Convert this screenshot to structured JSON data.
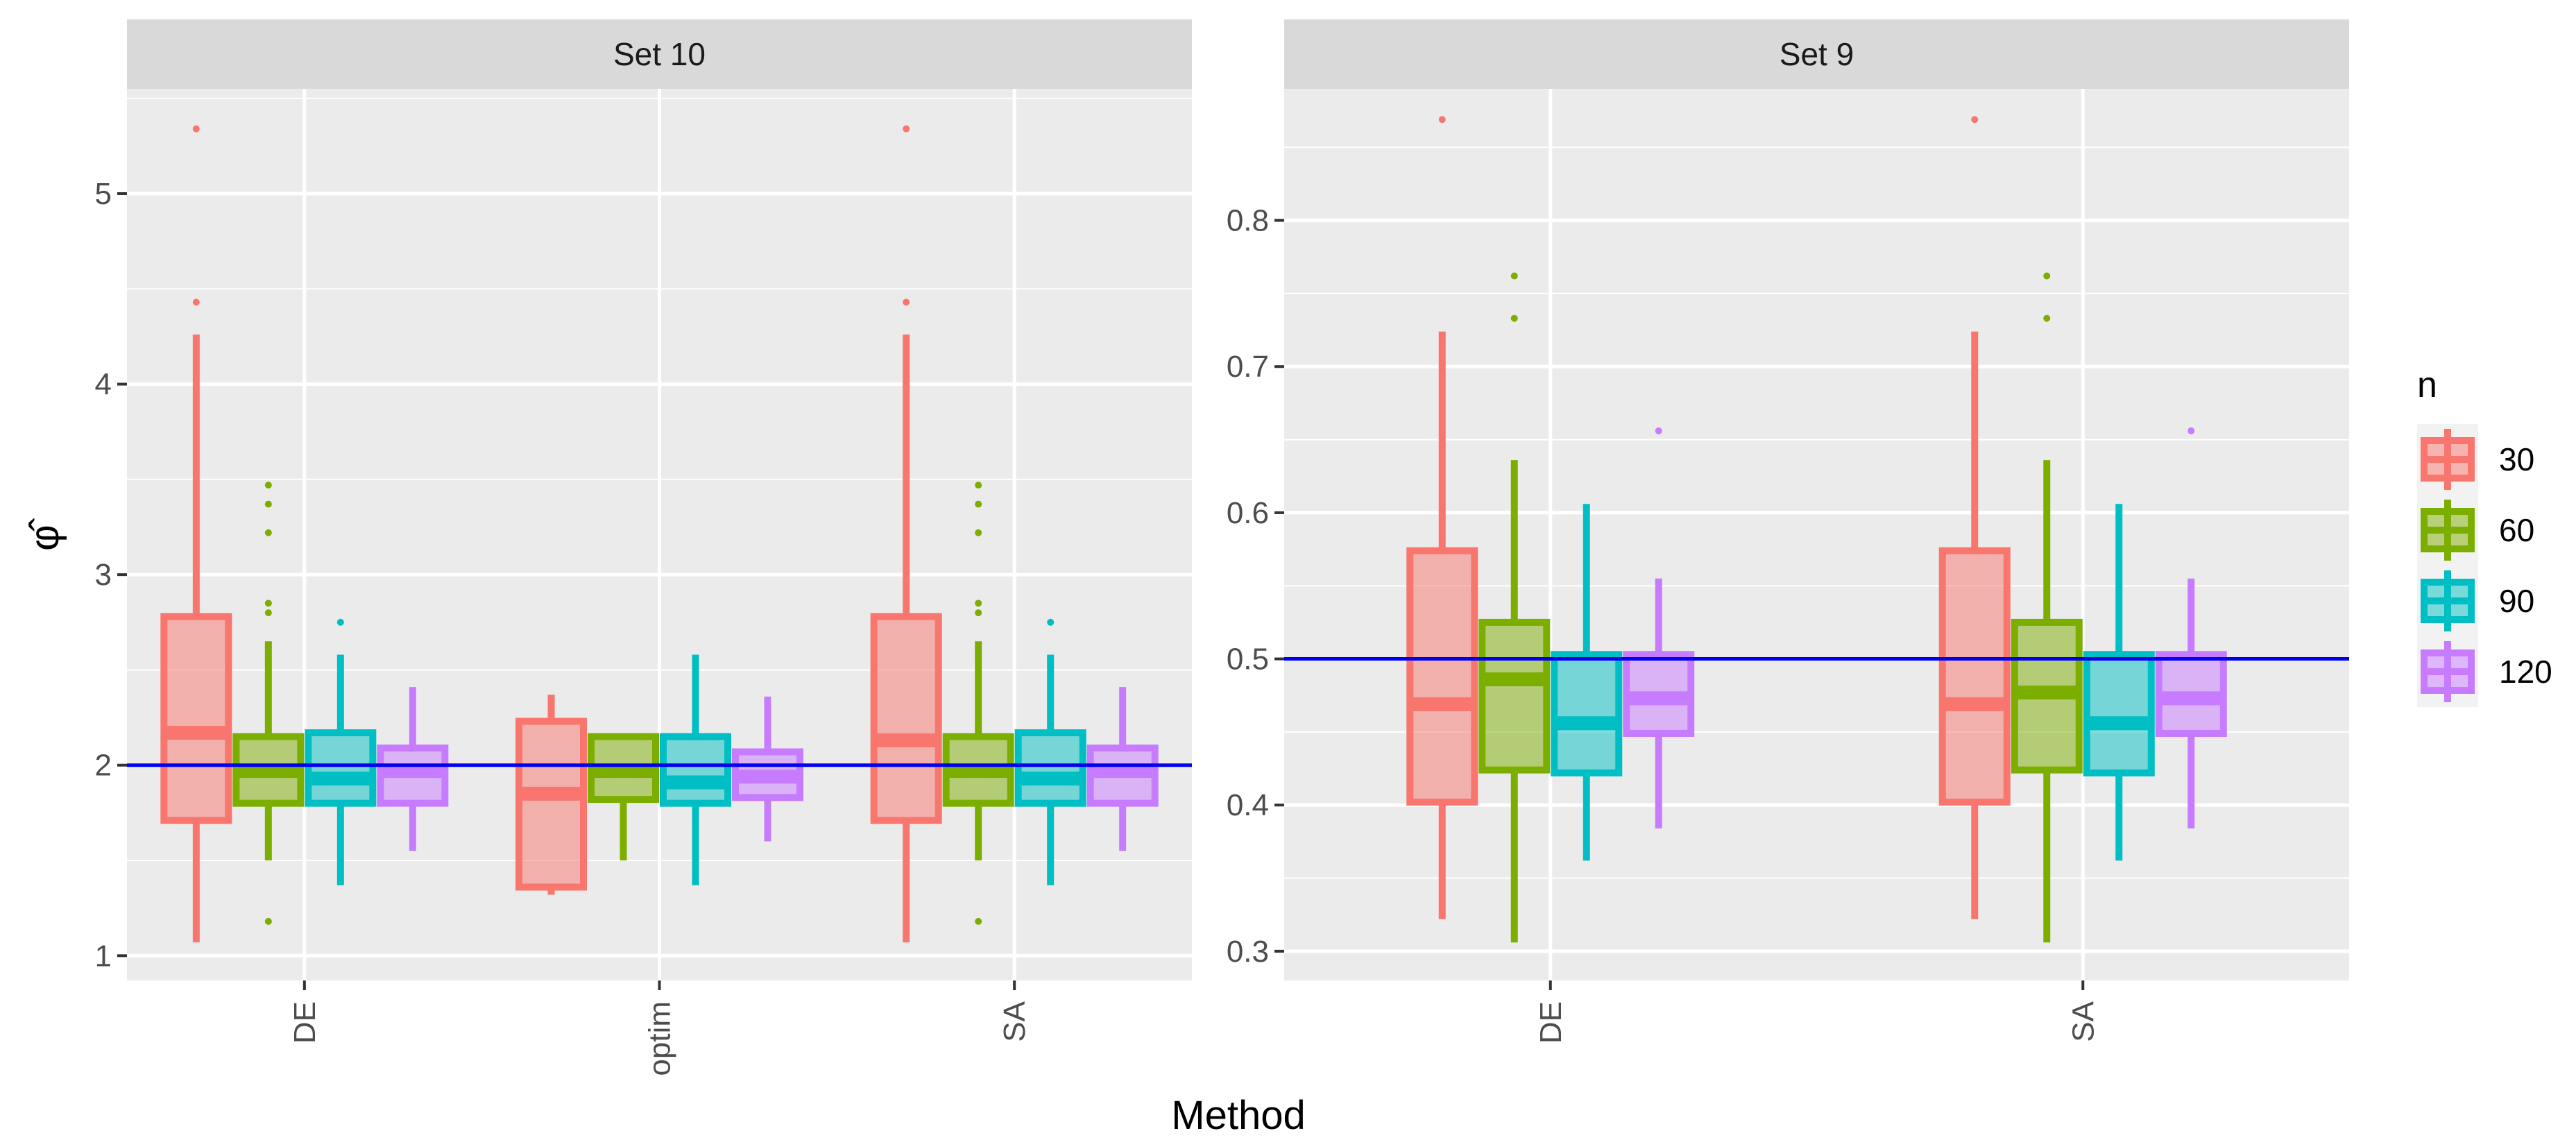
{
  "chart_data": {
    "type": "boxplot",
    "xlabel": "Method",
    "ylabel": "φ̂",
    "legend": {
      "title": "n",
      "position": "right",
      "entries": [
        "30",
        "60",
        "90",
        "120"
      ]
    },
    "colors": {
      "30": "#F8766D",
      "60": "#7CAE00",
      "90": "#00BFC4",
      "120": "#C77CFF",
      "reference": "#0000EE",
      "panel": "#EBEBEB",
      "strip": "#D9D9D9"
    },
    "panels": [
      {
        "title": "Set 10",
        "categories": [
          "DE",
          "optim",
          "SA"
        ],
        "ylim": [
          0.87,
          5.55
        ],
        "yticks": [
          1,
          2,
          3,
          4,
          5
        ],
        "reference_line": 2,
        "boxes": {
          "DE": [
            {
              "n": "30",
              "min": 1.07,
              "q1": 1.71,
              "median": 2.17,
              "q3": 2.78,
              "max": 4.26,
              "outliers": [
                4.43,
                5.34
              ]
            },
            {
              "n": "60",
              "min": 1.5,
              "q1": 1.8,
              "median": 1.97,
              "q3": 2.15,
              "max": 2.65,
              "outliers": [
                1.18,
                2.8,
                2.85,
                3.22,
                3.37,
                3.47
              ]
            },
            {
              "n": "90",
              "min": 1.37,
              "q1": 1.8,
              "median": 1.93,
              "q3": 2.17,
              "max": 2.58,
              "outliers": [
                2.75
              ]
            },
            {
              "n": "120",
              "min": 1.55,
              "q1": 1.8,
              "median": 1.97,
              "q3": 2.09,
              "max": 2.41,
              "outliers": []
            }
          ],
          "optim": [
            {
              "n": "30",
              "min": 1.32,
              "q1": 1.36,
              "median": 1.85,
              "q3": 2.23,
              "max": 2.37,
              "outliers": []
            },
            {
              "n": "60",
              "min": 1.5,
              "q1": 1.82,
              "median": 1.97,
              "q3": 2.15,
              "max": 2.15,
              "outliers": []
            },
            {
              "n": "90",
              "min": 1.37,
              "q1": 1.8,
              "median": 1.91,
              "q3": 2.15,
              "max": 2.58,
              "outliers": []
            },
            {
              "n": "120",
              "min": 1.6,
              "q1": 1.83,
              "median": 1.94,
              "q3": 2.07,
              "max": 2.36,
              "outliers": []
            }
          ],
          "SA": [
            {
              "n": "30",
              "min": 1.07,
              "q1": 1.71,
              "median": 2.13,
              "q3": 2.78,
              "max": 4.26,
              "outliers": [
                4.43,
                5.34
              ]
            },
            {
              "n": "60",
              "min": 1.5,
              "q1": 1.8,
              "median": 1.97,
              "q3": 2.15,
              "max": 2.65,
              "outliers": [
                1.18,
                2.8,
                2.85,
                3.22,
                3.37,
                3.47
              ]
            },
            {
              "n": "90",
              "min": 1.37,
              "q1": 1.8,
              "median": 1.93,
              "q3": 2.17,
              "max": 2.58,
              "outliers": [
                2.75
              ]
            },
            {
              "n": "120",
              "min": 1.55,
              "q1": 1.8,
              "median": 1.97,
              "q3": 2.09,
              "max": 2.41,
              "outliers": []
            }
          ]
        }
      },
      {
        "title": "Set 9",
        "categories": [
          "DE",
          "SA"
        ],
        "ylim": [
          0.28,
          0.89
        ],
        "yticks": [
          "0.3",
          "0.4",
          "0.5",
          "0.6",
          "0.7",
          "0.8"
        ],
        "reference_line": 0.5,
        "boxes": {
          "DE": [
            {
              "n": "30",
              "min": 0.322,
              "q1": 0.402,
              "median": 0.469,
              "q3": 0.574,
              "max": 0.724,
              "outliers": [
                0.869
              ]
            },
            {
              "n": "60",
              "min": 0.306,
              "q1": 0.424,
              "median": 0.486,
              "q3": 0.525,
              "max": 0.636,
              "outliers": [
                0.733,
                0.762
              ]
            },
            {
              "n": "90",
              "min": 0.362,
              "q1": 0.422,
              "median": 0.456,
              "q3": 0.503,
              "max": 0.606,
              "outliers": []
            },
            {
              "n": "120",
              "min": 0.384,
              "q1": 0.449,
              "median": 0.473,
              "q3": 0.503,
              "max": 0.555,
              "outliers": [
                0.656
              ]
            }
          ],
          "SA": [
            {
              "n": "30",
              "min": 0.322,
              "q1": 0.402,
              "median": 0.469,
              "q3": 0.574,
              "max": 0.724,
              "outliers": [
                0.869
              ]
            },
            {
              "n": "60",
              "min": 0.306,
              "q1": 0.424,
              "median": 0.477,
              "q3": 0.525,
              "max": 0.636,
              "outliers": [
                0.733,
                0.762
              ]
            },
            {
              "n": "90",
              "min": 0.362,
              "q1": 0.422,
              "median": 0.456,
              "q3": 0.503,
              "max": 0.606,
              "outliers": []
            },
            {
              "n": "120",
              "min": 0.384,
              "q1": 0.449,
              "median": 0.473,
              "q3": 0.503,
              "max": 0.555,
              "outliers": [
                0.656
              ]
            }
          ]
        }
      }
    ]
  }
}
